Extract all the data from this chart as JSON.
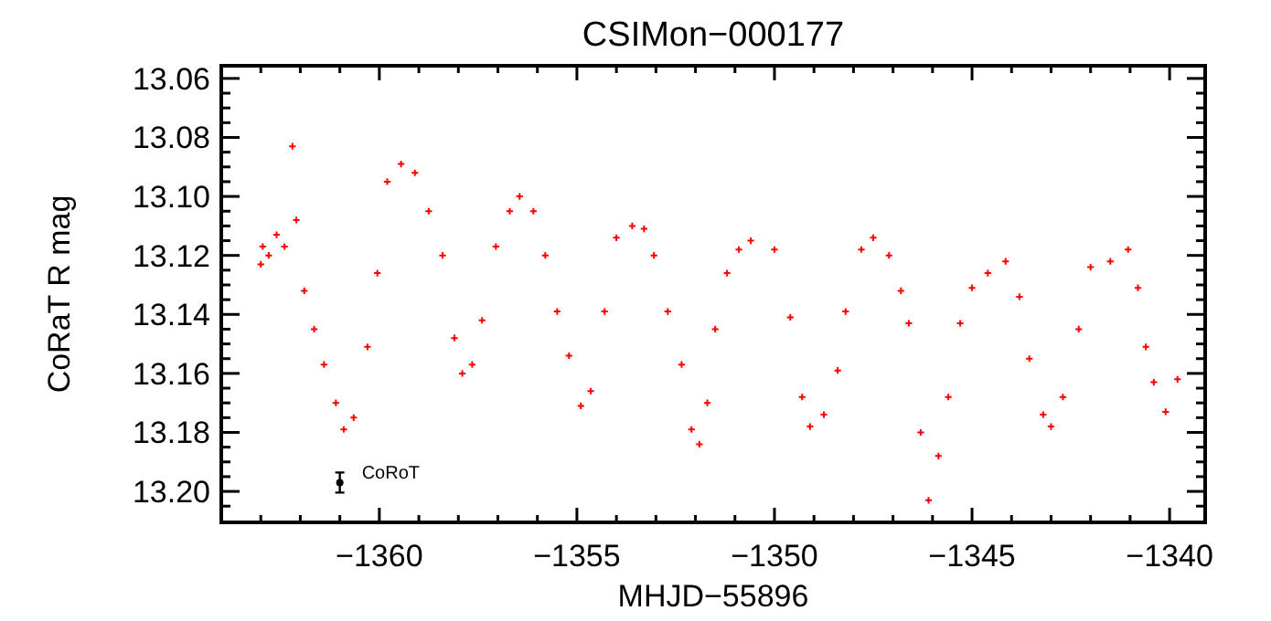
{
  "chart_data": {
    "type": "scatter",
    "title": "CSIMon−000177",
    "xlabel": "MHJD−55896",
    "ylabel": "CoRaT R mag",
    "xlim": [
      -1364,
      -1339.1
    ],
    "ylim": [
      13.2105,
      13.0557
    ],
    "xticks": [
      {
        "value": -1363,
        "label": null
      },
      {
        "value": -1362,
        "label": null
      },
      {
        "value": -1361,
        "label": null
      },
      {
        "value": -1360,
        "label": "−1360"
      },
      {
        "value": -1359,
        "label": null
      },
      {
        "value": -1358,
        "label": null
      },
      {
        "value": -1357,
        "label": null
      },
      {
        "value": -1356,
        "label": null
      },
      {
        "value": -1355,
        "label": "−1355"
      },
      {
        "value": -1354,
        "label": null
      },
      {
        "value": -1353,
        "label": null
      },
      {
        "value": -1352,
        "label": null
      },
      {
        "value": -1351,
        "label": null
      },
      {
        "value": -1350,
        "label": "−1350"
      },
      {
        "value": -1349,
        "label": null
      },
      {
        "value": -1348,
        "label": null
      },
      {
        "value": -1347,
        "label": null
      },
      {
        "value": -1346,
        "label": null
      },
      {
        "value": -1345,
        "label": "−1345"
      },
      {
        "value": -1344,
        "label": null
      },
      {
        "value": -1343,
        "label": null
      },
      {
        "value": -1342,
        "label": null
      },
      {
        "value": -1341,
        "label": null
      },
      {
        "value": -1340,
        "label": "−1340"
      }
    ],
    "yticks": [
      {
        "value": 13.06,
        "label": "13.06"
      },
      {
        "value": 13.065,
        "label": null
      },
      {
        "value": 13.07,
        "label": null
      },
      {
        "value": 13.075,
        "label": null
      },
      {
        "value": 13.08,
        "label": "13.08"
      },
      {
        "value": 13.085,
        "label": null
      },
      {
        "value": 13.09,
        "label": null
      },
      {
        "value": 13.095,
        "label": null
      },
      {
        "value": 13.1,
        "label": "13.10"
      },
      {
        "value": 13.105,
        "label": null
      },
      {
        "value": 13.11,
        "label": null
      },
      {
        "value": 13.115,
        "label": null
      },
      {
        "value": 13.12,
        "label": "13.12"
      },
      {
        "value": 13.125,
        "label": null
      },
      {
        "value": 13.13,
        "label": null
      },
      {
        "value": 13.135,
        "label": null
      },
      {
        "value": 13.14,
        "label": "13.14"
      },
      {
        "value": 13.145,
        "label": null
      },
      {
        "value": 13.15,
        "label": null
      },
      {
        "value": 13.155,
        "label": null
      },
      {
        "value": 13.16,
        "label": "13.16"
      },
      {
        "value": 13.165,
        "label": null
      },
      {
        "value": 13.17,
        "label": null
      },
      {
        "value": 13.175,
        "label": null
      },
      {
        "value": 13.18,
        "label": "13.18"
      },
      {
        "value": 13.185,
        "label": null
      },
      {
        "value": 13.19,
        "label": null
      },
      {
        "value": 13.195,
        "label": null
      },
      {
        "value": 13.2,
        "label": "13.20"
      },
      {
        "value": 13.205,
        "label": null
      }
    ],
    "marker": "cross",
    "series": [
      {
        "color": "#ff0000",
        "x": [
          -1363.0,
          -1362.95,
          -1362.8,
          -1362.6,
          -1362.4,
          -1362.2,
          -1362.1,
          -1361.9,
          -1361.65,
          -1361.4,
          -1361.1,
          -1360.9,
          -1360.65,
          -1360.3,
          -1360.05,
          -1359.8,
          -1359.45,
          -1359.1,
          -1358.75,
          -1358.4,
          -1358.1,
          -1357.9,
          -1357.65,
          -1357.4,
          -1357.05,
          -1356.7,
          -1356.45,
          -1356.1,
          -1355.8,
          -1355.5,
          -1355.2,
          -1354.9,
          -1354.65,
          -1354.3,
          -1354.0,
          -1353.6,
          -1353.3,
          -1353.05,
          -1352.7,
          -1352.35,
          -1352.1,
          -1351.9,
          -1351.7,
          -1351.5,
          -1351.2,
          -1350.9,
          -1350.6,
          -1350.0,
          -1349.6,
          -1349.3,
          -1349.1,
          -1348.75,
          -1348.4,
          -1348.2,
          -1347.8,
          -1347.5,
          -1347.1,
          -1346.8,
          -1346.6,
          -1346.3,
          -1346.1,
          -1345.85,
          -1345.6,
          -1345.3,
          -1345.0,
          -1344.6,
          -1344.15,
          -1343.8,
          -1343.55,
          -1343.2,
          -1343.0,
          -1342.7,
          -1342.3,
          -1342.0,
          -1341.5,
          -1341.05,
          -1340.8,
          -1340.6,
          -1340.4,
          -1340.1,
          -1339.8
        ],
        "values": [
          13.123,
          13.117,
          13.12,
          13.113,
          13.117,
          13.083,
          13.108,
          13.132,
          13.145,
          13.157,
          13.17,
          13.179,
          13.175,
          13.151,
          13.126,
          13.095,
          13.089,
          13.092,
          13.105,
          13.12,
          13.148,
          13.16,
          13.157,
          13.142,
          13.117,
          13.105,
          13.1,
          13.105,
          13.12,
          13.139,
          13.154,
          13.171,
          13.166,
          13.139,
          13.114,
          13.11,
          13.111,
          13.12,
          13.139,
          13.157,
          13.179,
          13.184,
          13.17,
          13.145,
          13.126,
          13.118,
          13.115,
          13.118,
          13.141,
          13.168,
          13.178,
          13.174,
          13.159,
          13.139,
          13.118,
          13.114,
          13.12,
          13.132,
          13.143,
          13.18,
          13.203,
          13.188,
          13.168,
          13.143,
          13.131,
          13.126,
          13.122,
          13.134,
          13.155,
          13.174,
          13.178,
          13.168,
          13.145,
          13.124,
          13.122,
          13.118,
          13.131,
          13.151,
          13.163,
          13.173,
          13.162
        ]
      },
      {
        "name": "CoRoT",
        "color": "#000000",
        "marker": "circle",
        "x": [
          -1361
        ],
        "values": [
          13.197
        ],
        "errors": [
          0.0034
        ]
      }
    ]
  }
}
